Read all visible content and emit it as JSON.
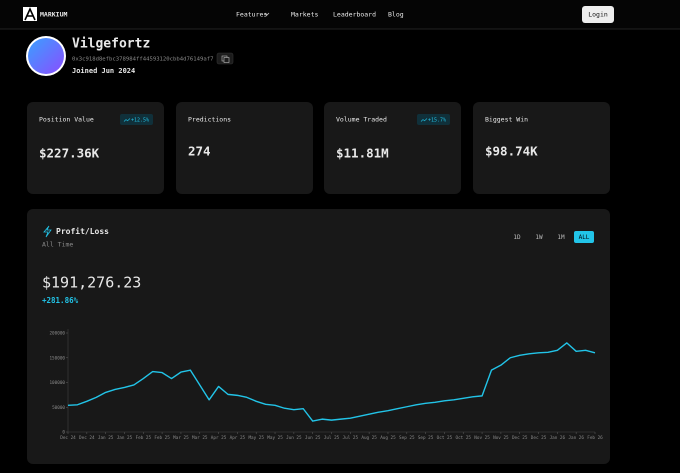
{
  "nav": {
    "brand": "MARKIUM",
    "links": [
      "Features",
      "Markets",
      "Leaderboard",
      "Blog"
    ],
    "login": "Login"
  },
  "profile": {
    "name": "Vilgefortz",
    "address": "0x3c918d8efbc378984ff44593120cbb4d76149af7",
    "joined": "Joined Jun 2024"
  },
  "stats": [
    {
      "label": "Position Value",
      "value": "$227.36K",
      "badge": "+12.5%"
    },
    {
      "label": "Predictions",
      "value": "274"
    },
    {
      "label": "Volume Traded",
      "value": "$11.81M",
      "badge": "+15.7%"
    },
    {
      "label": "Biggest Win",
      "value": "$98.74K"
    }
  ],
  "pnl": {
    "title": "Profit/Loss",
    "period": "All Time",
    "ranges": [
      "1D",
      "1W",
      "1M",
      "ALL"
    ],
    "active_range": "ALL",
    "amount": "$191,276.23",
    "change": "+281.86%"
  },
  "chart_data": {
    "type": "line",
    "categories": [
      "Dec 24",
      null,
      "Dec 24",
      null,
      "Jan 25",
      null,
      "Jan 25",
      null,
      "Feb 25",
      null,
      "Feb 25",
      null,
      "Mar 25",
      null,
      "Mar 25",
      null,
      "Apr 25",
      null,
      "Apr 25",
      null,
      "May 25",
      null,
      "May 25",
      null,
      "Jun 25",
      null,
      "Jun 25",
      null,
      "Jul 25",
      null,
      "Jul 25",
      null,
      "Aug 25",
      null,
      "Aug 25",
      null,
      "Sep 25",
      null,
      "Sep 25",
      null,
      "Oct 25",
      null,
      "Oct 25",
      null,
      "Nov 25",
      null,
      "Nov 25",
      null,
      "Dec 25",
      null,
      "Dec 25",
      null,
      "Jan 26",
      null,
      "Jan 26",
      null,
      "Feb 26"
    ],
    "series": [
      {
        "color": "#22c4e8",
        "values": [
          54000,
          55000,
          62000,
          70000,
          80000,
          86000,
          90000,
          95000,
          108000,
          122000,
          120000,
          108000,
          121000,
          125000,
          95000,
          65000,
          92000,
          76000,
          74000,
          70000,
          62000,
          56000,
          54000,
          48000,
          45000,
          47000,
          22000,
          26000,
          24000,
          26000,
          28000,
          32000,
          36000,
          40000,
          43000,
          47000,
          51000,
          55000,
          58000,
          60000,
          63000,
          65000,
          68000,
          71000,
          73000,
          125000,
          135000,
          150000,
          155000,
          158000,
          160000,
          161000,
          165000,
          180000,
          163000,
          165000,
          160000
        ]
      }
    ],
    "ylim": [
      0,
      200000
    ],
    "yticks": [
      0,
      50000,
      100000,
      150000,
      200000
    ]
  }
}
